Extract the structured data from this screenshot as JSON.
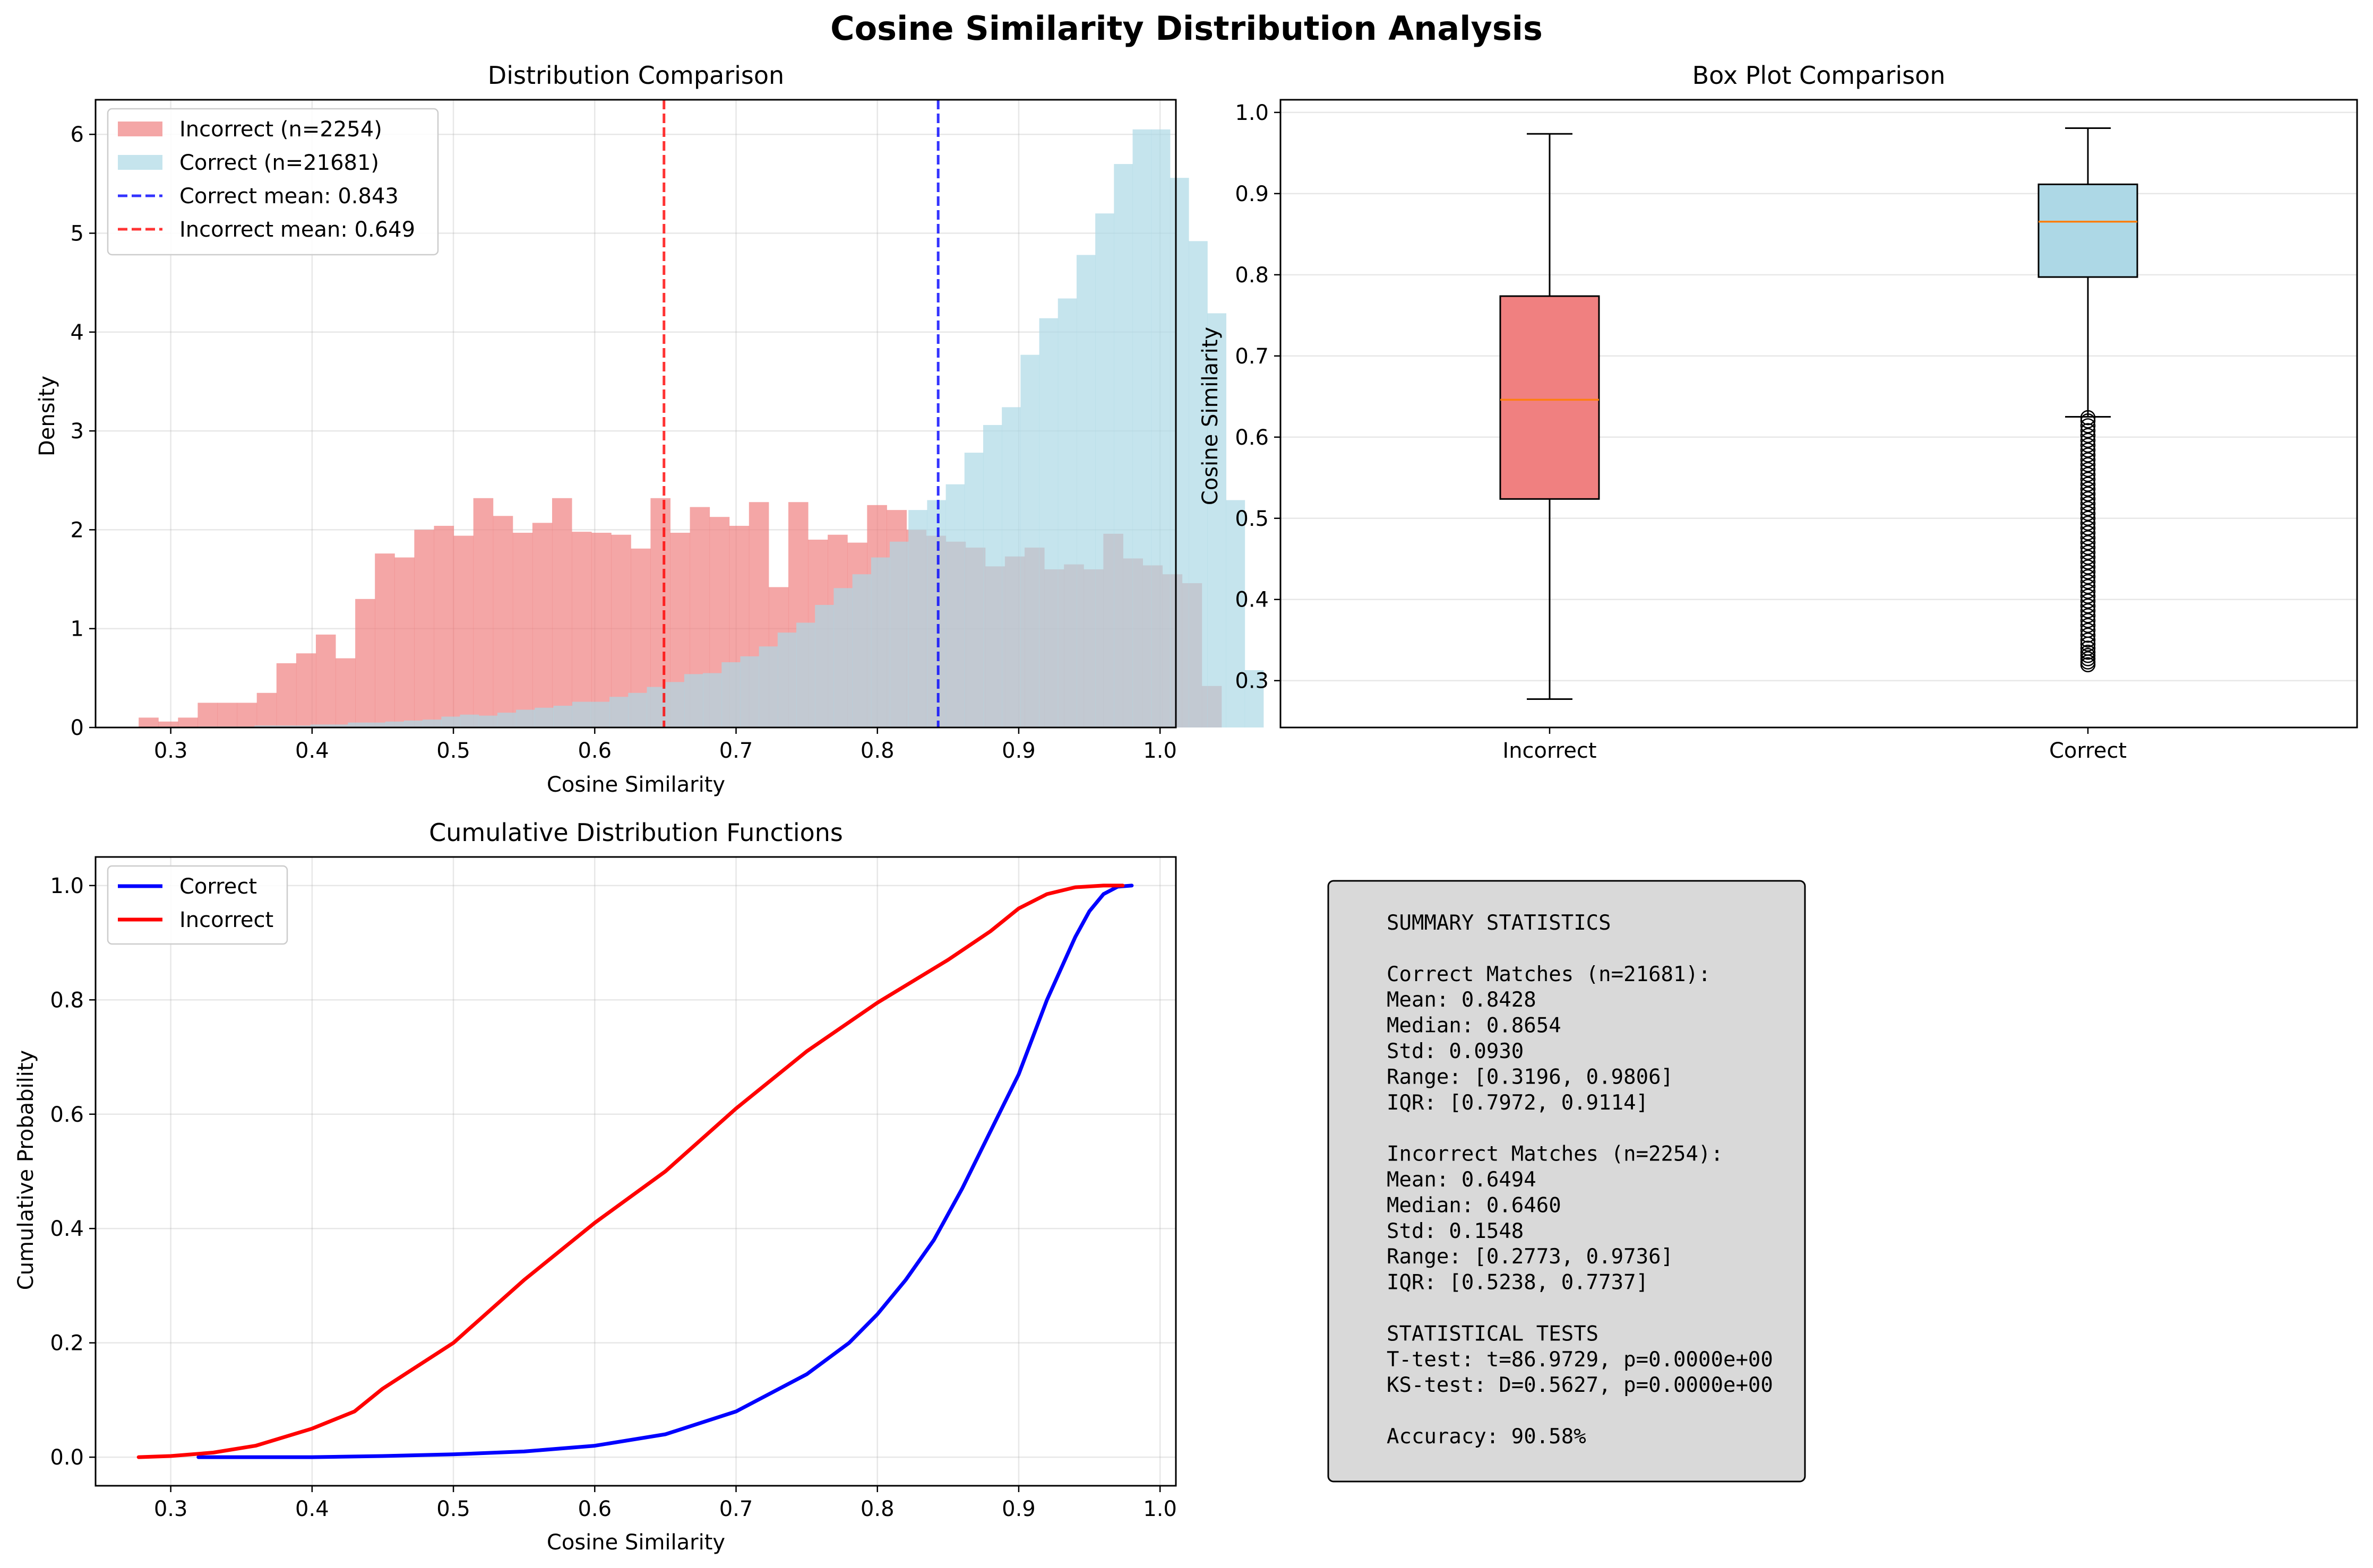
{
  "figure": {
    "title": "Cosine Similarity Distribution Analysis"
  },
  "colors": {
    "correct": "#add8e6",
    "incorrect": "#f08080",
    "correct_line": "#0000ff",
    "incorrect_line": "#ff0000",
    "median": "#ff7f0e",
    "textbox": "#d9d9d9"
  },
  "chart_data": [
    {
      "id": "hist",
      "type": "bar",
      "title": "Distribution Comparison",
      "xlabel": "Cosine Similarity",
      "ylabel": "Density",
      "xlim": [
        0.2468,
        1.0112
      ],
      "ylim": [
        0,
        6.35
      ],
      "xticks": [
        "0.3",
        "0.4",
        "0.5",
        "0.6",
        "0.7",
        "0.8",
        "0.9",
        "1.0"
      ],
      "xtick_values": [
        0.3,
        0.4,
        0.5,
        0.6,
        0.7,
        0.8,
        0.9,
        1.0
      ],
      "yticks": [
        "0",
        "1",
        "2",
        "3",
        "4",
        "5",
        "6"
      ],
      "ytick_values": [
        0,
        1,
        2,
        3,
        4,
        5,
        6
      ],
      "grid": true,
      "legend_position": "upper-left",
      "legend": [
        "Incorrect (n=2254)",
        "Correct (n=21681)",
        "Correct mean: 0.843",
        "Incorrect mean: 0.649"
      ],
      "series": [
        {
          "name": "Incorrect (n=2254)",
          "bin_start": 0.2773,
          "bin_width": 0.01393,
          "values": [
            0.1,
            0.06,
            0.1,
            0.25,
            0.25,
            0.25,
            0.35,
            0.65,
            0.75,
            0.94,
            0.7,
            1.3,
            1.76,
            1.72,
            2.0,
            2.04,
            1.94,
            2.32,
            2.14,
            1.97,
            2.07,
            2.32,
            1.98,
            1.97,
            1.95,
            1.81,
            2.32,
            1.97,
            2.23,
            2.13,
            2.04,
            2.28,
            1.42,
            2.28,
            1.9,
            1.95,
            1.87,
            2.25,
            2.2,
            2.0,
            1.94,
            1.88,
            1.82,
            1.63,
            1.73,
            1.82,
            1.6,
            1.65,
            1.6,
            1.96,
            1.71,
            1.64,
            1.55,
            1.46,
            0.42
          ]
        },
        {
          "name": "Correct (n=21681)",
          "bin_start": 0.3196,
          "bin_width": 0.01322,
          "values": [
            0.01,
            0.01,
            0.01,
            0.02,
            0.02,
            0.02,
            0.03,
            0.03,
            0.05,
            0.05,
            0.06,
            0.07,
            0.08,
            0.11,
            0.13,
            0.12,
            0.15,
            0.18,
            0.2,
            0.22,
            0.26,
            0.26,
            0.31,
            0.35,
            0.41,
            0.46,
            0.54,
            0.55,
            0.66,
            0.72,
            0.82,
            0.96,
            1.06,
            1.24,
            1.41,
            1.55,
            1.72,
            1.88,
            2.2,
            2.3,
            2.46,
            2.78,
            3.06,
            3.24,
            3.77,
            4.14,
            4.34,
            4.78,
            5.2,
            5.7,
            6.05,
            6.05,
            5.56,
            4.92,
            4.19,
            2.3,
            0.58
          ]
        }
      ],
      "mean_lines": [
        {
          "label": "Correct mean: 0.843",
          "value": 0.843,
          "color": "#0000ff"
        },
        {
          "label": "Incorrect mean: 0.649",
          "value": 0.649,
          "color": "#ff0000"
        }
      ]
    },
    {
      "id": "box",
      "type": "box",
      "title": "Box Plot Comparison",
      "ylabel": "Cosine Similarity",
      "categories": [
        "Incorrect",
        "Correct"
      ],
      "ylim": [
        0.2423,
        1.0156
      ],
      "yticks": [
        "0.3",
        "0.4",
        "0.5",
        "0.6",
        "0.7",
        "0.8",
        "0.9",
        "1.0"
      ],
      "ytick_values": [
        0.3,
        0.4,
        0.5,
        0.6,
        0.7,
        0.8,
        0.9,
        1.0
      ],
      "grid": true,
      "boxes": [
        {
          "name": "Incorrect",
          "whisker_low": 0.2773,
          "q1": 0.5238,
          "median": 0.646,
          "q3": 0.7737,
          "whisker_high": 0.9736,
          "outliers": []
        },
        {
          "name": "Correct",
          "whisker_low": 0.625,
          "q1": 0.7972,
          "median": 0.8654,
          "q3": 0.9114,
          "whisker_high": 0.9806,
          "outliers": [
            0.3196,
            0.323,
            0.327,
            0.331,
            0.335,
            0.34,
            0.345,
            0.35,
            0.356,
            0.362,
            0.368,
            0.374,
            0.38,
            0.386,
            0.392,
            0.398,
            0.404,
            0.41,
            0.416,
            0.422,
            0.428,
            0.434,
            0.44,
            0.446,
            0.452,
            0.458,
            0.464,
            0.47,
            0.476,
            0.482,
            0.488,
            0.494,
            0.5,
            0.506,
            0.512,
            0.518,
            0.524,
            0.53,
            0.536,
            0.542,
            0.548,
            0.554,
            0.56,
            0.566,
            0.572,
            0.578,
            0.584,
            0.59,
            0.596,
            0.602,
            0.608,
            0.614,
            0.62,
            0.624
          ]
        }
      ]
    },
    {
      "id": "cdf",
      "type": "line",
      "title": "Cumulative Distribution Functions",
      "xlabel": "Cosine Similarity",
      "ylabel": "Cumulative Probability",
      "xlim": [
        0.2468,
        1.0112
      ],
      "ylim": [
        -0.05,
        1.05
      ],
      "xticks": [
        "0.3",
        "0.4",
        "0.5",
        "0.6",
        "0.7",
        "0.8",
        "0.9",
        "1.0"
      ],
      "xtick_values": [
        0.3,
        0.4,
        0.5,
        0.6,
        0.7,
        0.8,
        0.9,
        1.0
      ],
      "yticks": [
        "0.0",
        "0.2",
        "0.4",
        "0.6",
        "0.8",
        "1.0"
      ],
      "ytick_values": [
        0.0,
        0.2,
        0.4,
        0.6,
        0.8,
        1.0
      ],
      "grid": true,
      "legend_position": "upper-left",
      "legend": [
        "Correct",
        "Incorrect"
      ],
      "series": [
        {
          "name": "Correct",
          "color": "#0000ff",
          "x": [
            0.3196,
            0.4,
            0.45,
            0.5,
            0.55,
            0.6,
            0.65,
            0.7,
            0.75,
            0.78,
            0.8,
            0.82,
            0.84,
            0.86,
            0.88,
            0.9,
            0.92,
            0.94,
            0.95,
            0.96,
            0.97,
            0.98
          ],
          "y": [
            0.0,
            0.0,
            0.002,
            0.005,
            0.01,
            0.02,
            0.04,
            0.08,
            0.145,
            0.2,
            0.25,
            0.31,
            0.38,
            0.47,
            0.57,
            0.67,
            0.8,
            0.91,
            0.955,
            0.985,
            0.998,
            1.0
          ]
        },
        {
          "name": "Incorrect",
          "color": "#ff0000",
          "x": [
            0.2773,
            0.3,
            0.33,
            0.36,
            0.4,
            0.43,
            0.45,
            0.5,
            0.55,
            0.6,
            0.65,
            0.7,
            0.75,
            0.8,
            0.85,
            0.88,
            0.9,
            0.92,
            0.94,
            0.96,
            0.9736
          ],
          "y": [
            0.0,
            0.002,
            0.008,
            0.02,
            0.05,
            0.08,
            0.12,
            0.2,
            0.31,
            0.41,
            0.5,
            0.61,
            0.71,
            0.795,
            0.87,
            0.92,
            0.96,
            0.985,
            0.997,
            1.0,
            1.0
          ]
        }
      ]
    }
  ],
  "summary": {
    "lines": [
      "SUMMARY STATISTICS",
      "",
      "Correct Matches (n=21681):",
      "Mean: 0.8428",
      "Median: 0.8654",
      "Std: 0.0930",
      "Range: [0.3196, 0.9806]",
      "IQR: [0.7972, 0.9114]",
      "",
      "Incorrect Matches (n=2254):",
      "Mean: 0.6494",
      "Median: 0.6460",
      "Std: 0.1548",
      "Range: [0.2773, 0.9736]",
      "IQR: [0.5238, 0.7737]",
      "",
      "STATISTICAL TESTS",
      "T-test: t=86.9729, p=0.0000e+00",
      "KS-test: D=0.5627, p=0.0000e+00",
      "",
      "Accuracy: 90.58%"
    ]
  }
}
